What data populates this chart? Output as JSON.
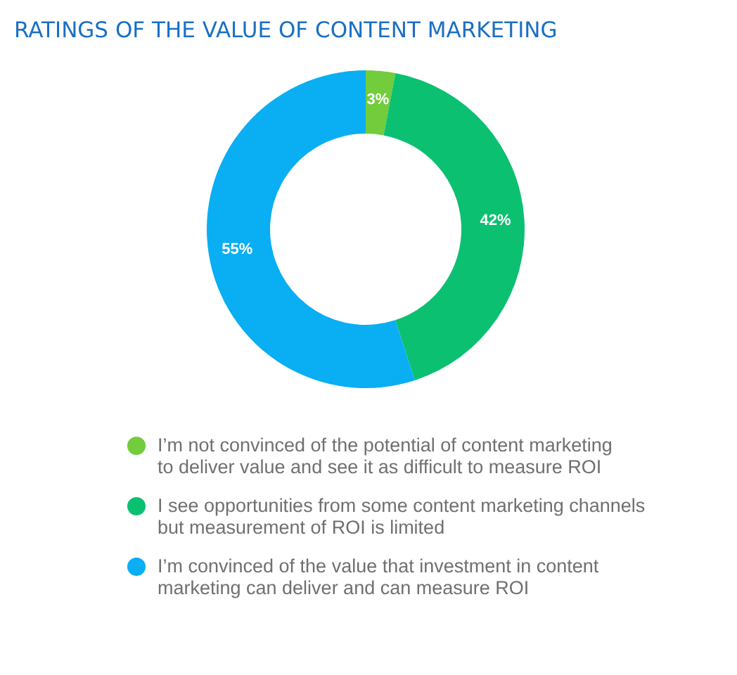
{
  "chart_data": {
    "type": "donut",
    "title": "RATINGS OF THE VALUE OF CONTENT MARKETING",
    "categories": [
      "I’m not convinced of the potential of content marketing to deliver value and see it as difficult to measure ROI",
      "I see opportunities from some content marketing channels but measurement of ROI is limited",
      "I’m convinced of the value that investment in content marketing can deliver and can measure ROI"
    ],
    "values": [
      3,
      42,
      55
    ],
    "colors": [
      "#72cc3c",
      "#0cc071",
      "#0aaef2"
    ],
    "value_labels": [
      "3%",
      "42%",
      "55%"
    ],
    "legend": "bottom"
  }
}
